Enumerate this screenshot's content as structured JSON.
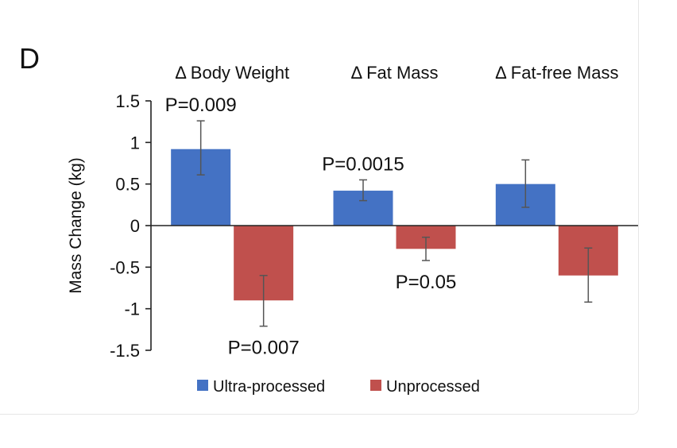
{
  "panel_label": "D",
  "chart_data": {
    "type": "bar",
    "categories": [
      "Δ Body Weight",
      "Δ Fat Mass",
      "Δ Fat-free Mass"
    ],
    "series": [
      {
        "name": "Ultra-processed",
        "color": "#4472c4",
        "values": [
          0.92,
          0.42,
          0.5
        ],
        "err_low": [
          0.61,
          0.3,
          0.22
        ],
        "err_high": [
          1.26,
          0.55,
          0.79
        ]
      },
      {
        "name": "Unprocessed",
        "color": "#c0504d",
        "values": [
          -0.9,
          -0.28,
          -0.6
        ],
        "err_low": [
          -1.21,
          -0.42,
          -0.92
        ],
        "err_high": [
          -0.6,
          -0.14,
          -0.27
        ]
      }
    ],
    "ylabel": "Mass Change (kg)",
    "ylim": [
      -1.5,
      1.5
    ],
    "yticks": [
      1.5,
      1,
      0.5,
      0,
      -0.5,
      -1,
      -1.5
    ],
    "ytick_labels": [
      "1.5",
      "1",
      "0.5",
      "0",
      "-0.5",
      "-1",
      "-1.5"
    ],
    "grid": false,
    "legend": "bottom",
    "annotations": [
      {
        "text": "P=0.009",
        "category": 0,
        "series": 0,
        "position": "above"
      },
      {
        "text": "P=0.007",
        "category": 0,
        "series": 1,
        "position": "below"
      },
      {
        "text": "P=0.0015",
        "category": 1,
        "series": 0,
        "position": "above"
      },
      {
        "text": "P=0.05",
        "category": 1,
        "series": 1,
        "position": "below"
      }
    ]
  }
}
